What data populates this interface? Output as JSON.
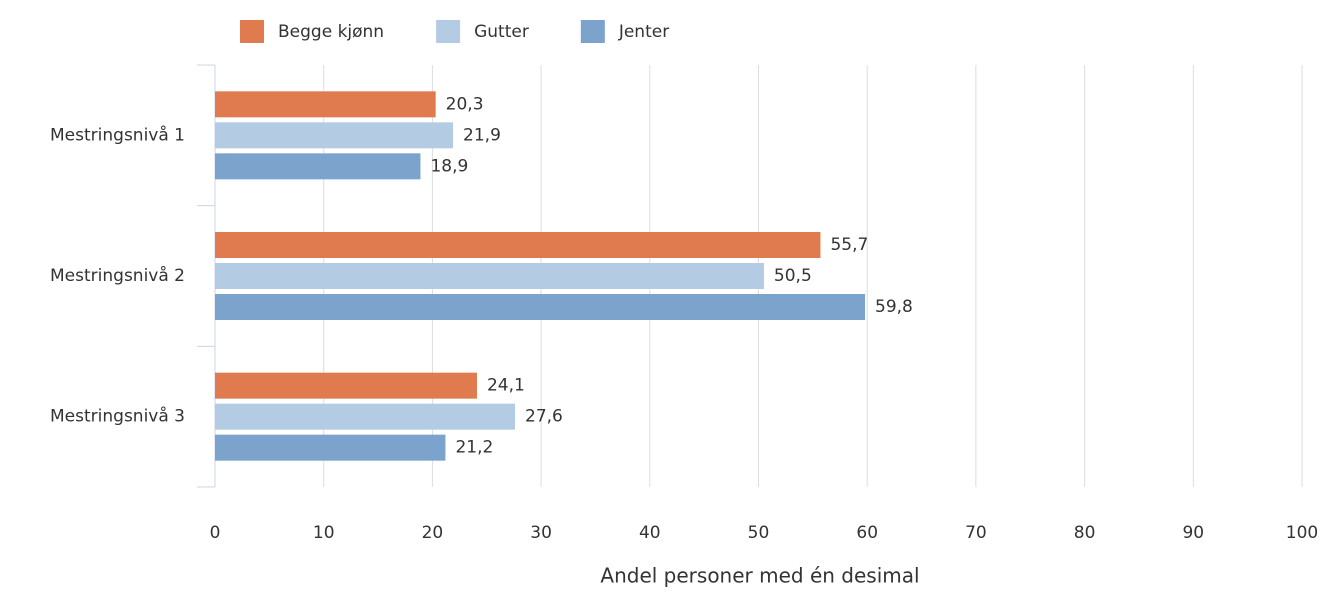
{
  "chart_data": {
    "type": "barh",
    "categories": [
      "Mestringsnivå 1",
      "Mestringsnivå 2",
      "Mestringsnivå 3"
    ],
    "series": [
      {
        "name": "Begge kjønn",
        "color": "#e07b4f",
        "values": [
          20.3,
          55.7,
          24.1
        ],
        "value_labels": [
          "20,3",
          "55,7",
          "24,1"
        ]
      },
      {
        "name": "Gutter",
        "color": "#b3cbe3",
        "values": [
          21.9,
          50.5,
          27.6
        ],
        "value_labels": [
          "21,9",
          "50,5",
          "27,6"
        ]
      },
      {
        "name": "Jenter",
        "color": "#7ba3cc",
        "values": [
          18.9,
          59.8,
          21.2
        ],
        "value_labels": [
          "18,9",
          "59,8",
          "21,2"
        ]
      }
    ],
    "xlabel": "Andel personer med én desimal",
    "xlim": [
      0,
      100
    ],
    "xticks": [
      0,
      10,
      20,
      30,
      40,
      50,
      60,
      70,
      80,
      90,
      100
    ],
    "grid": true,
    "legend": "top"
  }
}
